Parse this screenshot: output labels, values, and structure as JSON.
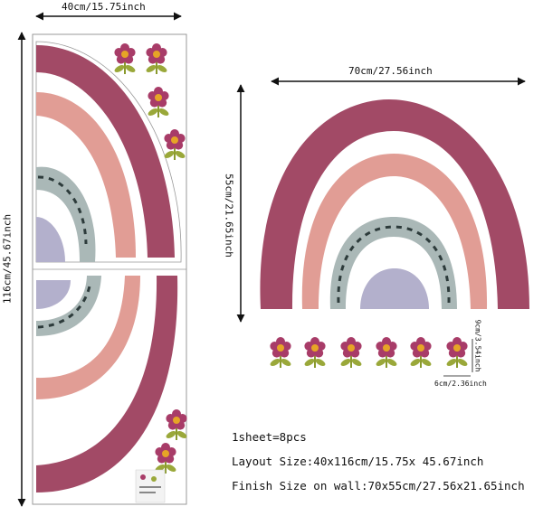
{
  "dimensions": {
    "sheet_width": "40cm/15.75inch",
    "sheet_height": "116cm/45.67inch",
    "finish_width": "70cm/27.56inch",
    "finish_height": "55cm/21.65inch",
    "flower_height": "9cm/3.54inch",
    "flower_width": "6cm/2.36inch"
  },
  "specs": {
    "count": "1sheet=8pcs",
    "layout_size": "Layout Size:40x116cm/15.75x 45.67inch",
    "finish_size": "Finish Size on wall:70x55cm/27.56x21.65inch"
  },
  "colors": {
    "outer_arc": "#a24a66",
    "middle_arc": "#e19d95",
    "inner_arc": "#aab8b7",
    "dashes": "#2d3b3b",
    "semicircle": "#b3b0cc",
    "petal": "#a83c68",
    "flower_center": "#e6a526",
    "leaf": "#9aa83a"
  }
}
